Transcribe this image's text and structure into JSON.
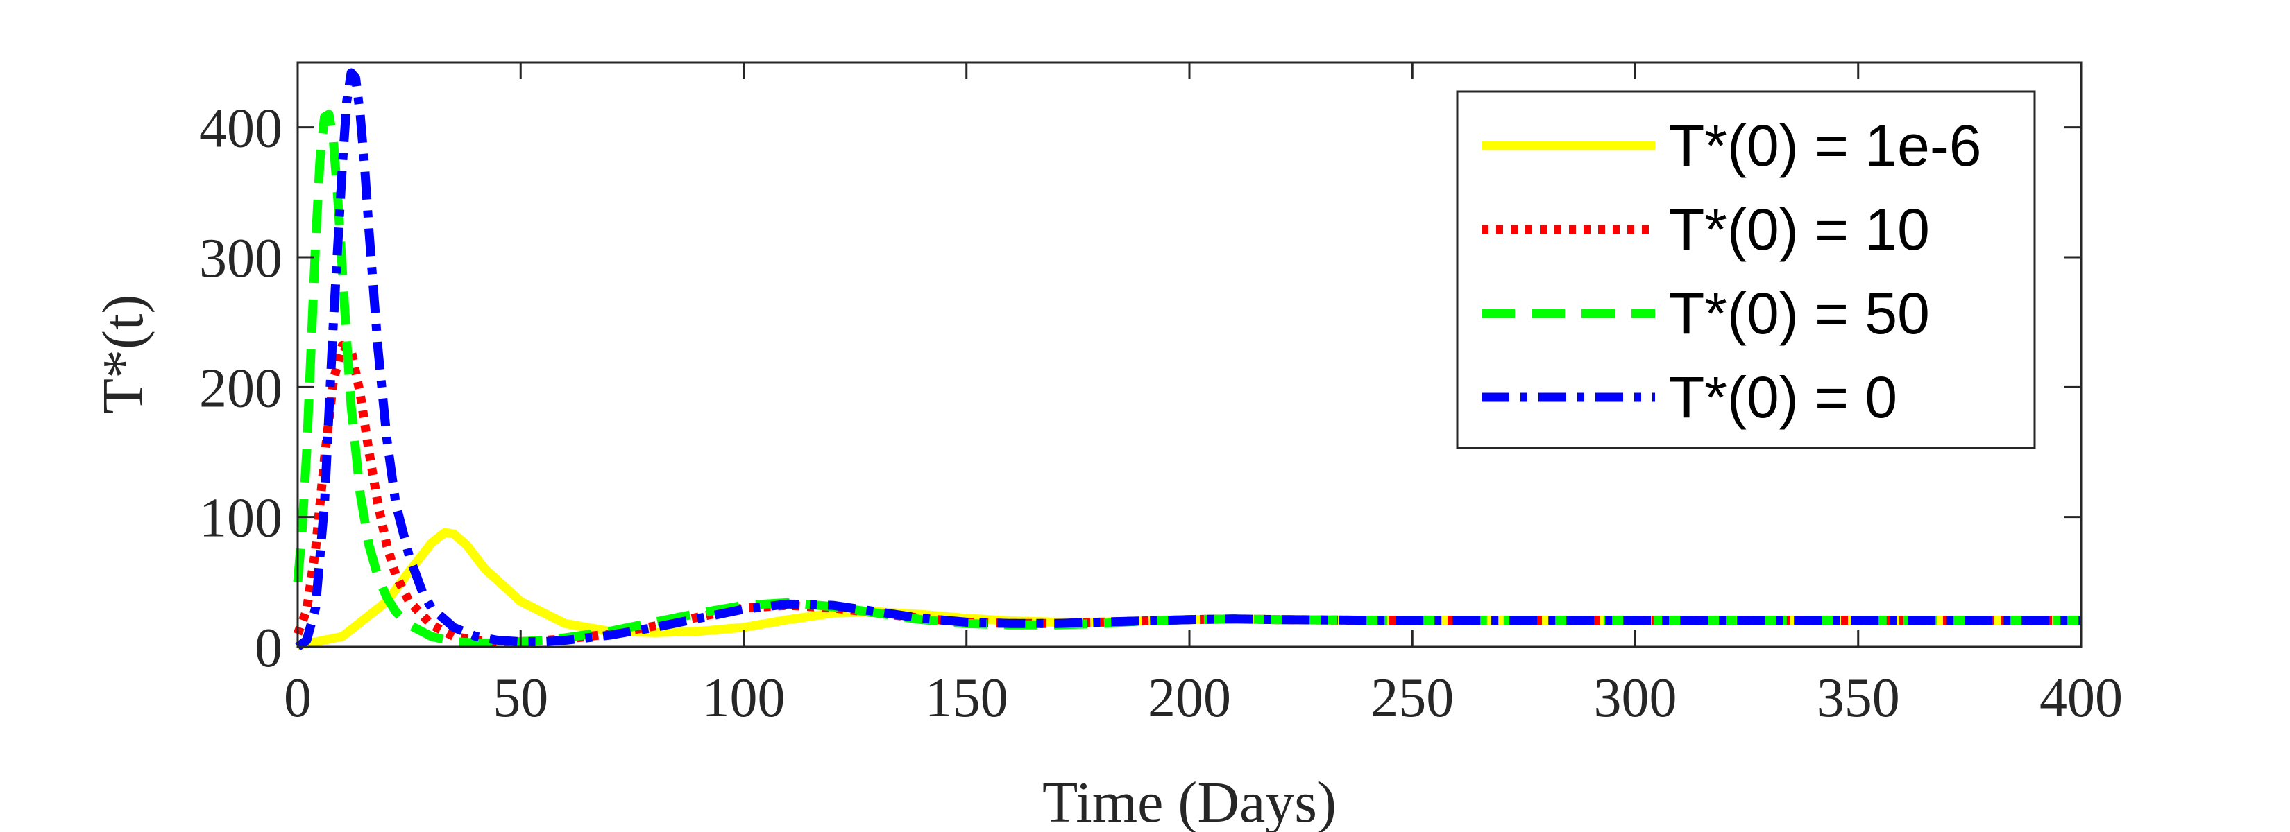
{
  "chart_data": {
    "type": "line",
    "title": "",
    "xlabel": "Time (Days)",
    "ylabel": "T*(t)",
    "xlim": [
      0,
      400
    ],
    "ylim": [
      0,
      450
    ],
    "xticks": [
      0,
      50,
      100,
      150,
      200,
      250,
      300,
      350,
      400
    ],
    "yticks": [
      0,
      100,
      200,
      300,
      400
    ],
    "xtick_labels": [
      "0",
      "50",
      "100",
      "150",
      "200",
      "250",
      "300",
      "350",
      "400"
    ],
    "ytick_labels": [
      "0",
      "100",
      "200",
      "300",
      "400"
    ],
    "grid": false,
    "legend_position": "top-right",
    "series": [
      {
        "name": "T*(0) = 1e-6",
        "color": "#FFFF00",
        "style": "solid",
        "x": [
          0,
          10,
          20,
          25,
          30,
          33,
          35,
          38,
          42,
          50,
          60,
          70,
          80,
          90,
          100,
          110,
          120,
          130,
          140,
          150,
          160,
          170,
          180,
          190,
          200,
          210,
          220,
          240,
          260,
          280,
          300,
          320,
          340,
          360,
          380,
          400
        ],
        "y": [
          1,
          8,
          35,
          58,
          80,
          88,
          87,
          78,
          60,
          35,
          18,
          12,
          11,
          12,
          15,
          21,
          26,
          27,
          25,
          22,
          20,
          19,
          19,
          20,
          21,
          21.5,
          21,
          20.5,
          20.5,
          20.5,
          20.5,
          20.5,
          20.5,
          20.5,
          20.5,
          20.5
        ]
      },
      {
        "name": "T*(0) = 10",
        "color": "#FF0000",
        "style": "dotted",
        "x": [
          0,
          2,
          4,
          6,
          8,
          10,
          12,
          14,
          16,
          18,
          20,
          22,
          25,
          30,
          35,
          40,
          45,
          50,
          55,
          60,
          70,
          80,
          90,
          100,
          110,
          120,
          130,
          140,
          150,
          160,
          170,
          180,
          190,
          200,
          210,
          220,
          240,
          260,
          280,
          300,
          320,
          340,
          360,
          380,
          400
        ],
        "y": [
          10,
          28,
          75,
          145,
          205,
          232,
          228,
          195,
          150,
          110,
          78,
          55,
          35,
          17,
          8,
          5,
          4,
          4,
          5,
          6,
          10,
          16,
          23,
          30,
          32,
          30,
          26,
          22,
          19,
          18,
          18,
          19,
          20,
          21,
          21.5,
          21,
          20.5,
          20.5,
          20.5,
          20.5,
          20.5,
          20.5,
          20.5,
          20.5,
          20.5
        ]
      },
      {
        "name": "T*(0) = 50",
        "color": "#00FF00",
        "style": "dashed",
        "x": [
          0,
          1,
          2,
          3,
          4,
          5,
          6,
          7,
          8,
          9,
          10,
          11,
          12,
          14,
          16,
          18,
          20,
          22,
          25,
          30,
          35,
          40,
          45,
          50,
          55,
          60,
          70,
          80,
          90,
          100,
          110,
          120,
          130,
          140,
          150,
          160,
          170,
          180,
          190,
          200,
          210,
          220,
          240,
          260,
          280,
          300,
          320,
          340,
          360,
          380,
          400
        ],
        "y": [
          50,
          90,
          150,
          230,
          310,
          375,
          408,
          410,
          390,
          345,
          290,
          235,
          185,
          118,
          78,
          54,
          38,
          27,
          17,
          8,
          4,
          3,
          3,
          4,
          5,
          7,
          12,
          19,
          26,
          32,
          34,
          31,
          26,
          21,
          18,
          17,
          17,
          18,
          20,
          21,
          21.5,
          21,
          20.5,
          20.5,
          20.5,
          20.5,
          20.5,
          20.5,
          20.5,
          20.5,
          20.5
        ]
      },
      {
        "name": "T*(0) = 0",
        "color": "#0000FF",
        "style": "dashdot",
        "x": [
          0,
          2,
          4,
          6,
          8,
          10,
          11,
          12,
          13,
          14,
          15,
          16,
          18,
          20,
          22,
          25,
          28,
          30,
          35,
          40,
          45,
          50,
          55,
          60,
          70,
          80,
          90,
          100,
          110,
          120,
          130,
          140,
          150,
          160,
          170,
          180,
          190,
          200,
          210,
          220,
          240,
          260,
          280,
          300,
          320,
          340,
          360,
          380,
          400
        ],
        "y": [
          0,
          5,
          30,
          110,
          250,
          370,
          420,
          442,
          438,
          410,
          370,
          320,
          230,
          160,
          110,
          70,
          42,
          30,
          15,
          8,
          5,
          4,
          4,
          5,
          9,
          15,
          22,
          29,
          33,
          32,
          27,
          22,
          19,
          18,
          18,
          19,
          20,
          21,
          21.5,
          21,
          20.5,
          20.5,
          20.5,
          20.5,
          20.5,
          20.5,
          20.5,
          20.5,
          20.5
        ]
      }
    ]
  }
}
